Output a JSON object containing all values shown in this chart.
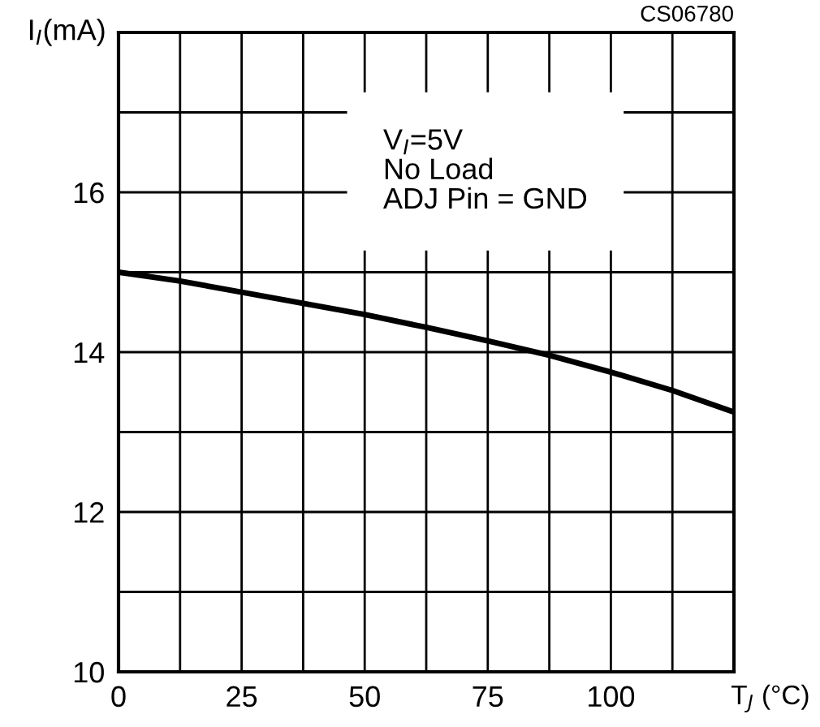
{
  "chart_data": {
    "type": "line",
    "x": [
      0,
      12.5,
      25,
      37.5,
      50,
      62.5,
      75,
      87.5,
      100,
      112.5,
      125
    ],
    "series": [
      {
        "color": "#000000",
        "values": [
          15.0,
          14.89,
          14.75,
          14.61,
          14.47,
          14.31,
          14.14,
          13.96,
          13.75,
          13.52,
          13.25
        ]
      }
    ],
    "xlabel": "T$_{J}$ (°C)",
    "ylabel": "I$_{I}$(mA)",
    "xlim": [
      0,
      125
    ],
    "ylim": [
      10,
      18
    ],
    "xticks": [
      0,
      {
        "value": 12.5,
        "label": null
      },
      25,
      {
        "value": 37.5,
        "label": null
      },
      50,
      {
        "value": 62.5,
        "label": null
      },
      75,
      {
        "value": 87.5,
        "label": null
      },
      100,
      {
        "value": 112.5,
        "label": null
      }
    ],
    "yticks": [
      10,
      {
        "value": 11,
        "label": null
      },
      12,
      {
        "value": 13,
        "label": null
      },
      14,
      {
        "value": 15,
        "label": null
      },
      16,
      {
        "value": 17,
        "label": null
      }
    ],
    "grid": true,
    "marker": "none",
    "line_style": "solid",
    "annotations": [
      "V$_{I}$=5V\nNo Load\nADJ Pin = GND",
      "CS06780"
    ]
  }
}
